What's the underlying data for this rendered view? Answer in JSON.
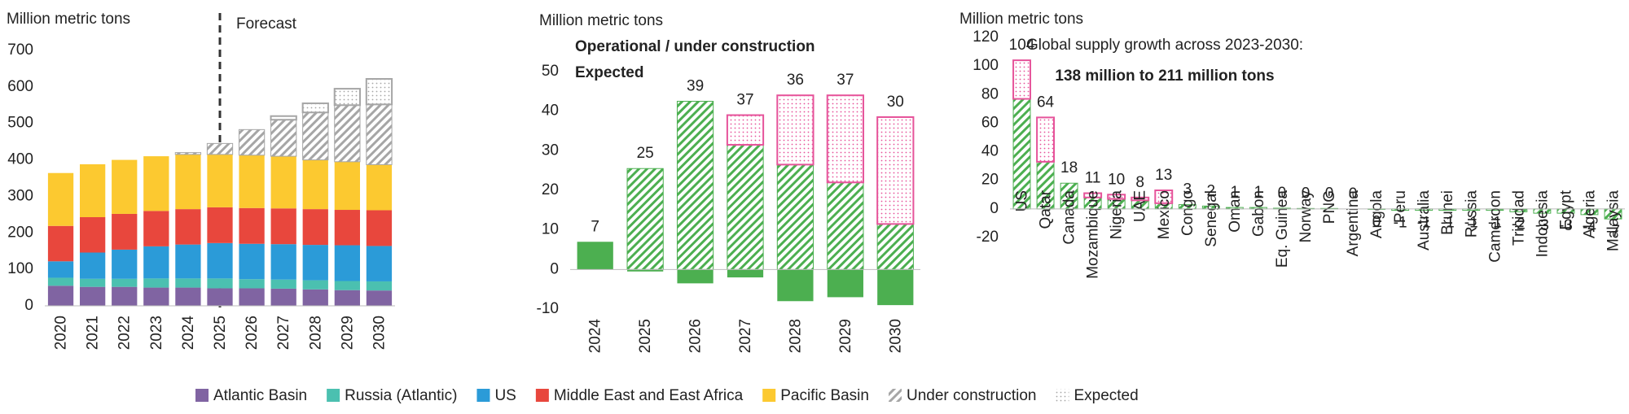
{
  "chart_data": [
    {
      "type": "bar",
      "stacked": true,
      "ylabel": "Million metric tons",
      "annotation": "Forecast",
      "categories": [
        "2020",
        "2021",
        "2022",
        "2023",
        "2024",
        "2025",
        "2026",
        "2027",
        "2028",
        "2029",
        "2030"
      ],
      "series": [
        {
          "name": "Atlantic Basin",
          "color": "#8064a2",
          "values": [
            55,
            52,
            52,
            50,
            50,
            48,
            48,
            47,
            45,
            43,
            42
          ]
        },
        {
          "name": "Russia (Atlantic)",
          "color": "#4bc0b0",
          "values": [
            22,
            22,
            22,
            25,
            25,
            27,
            25,
            25,
            25,
            25,
            25
          ]
        },
        {
          "name": "US",
          "color": "#2b9bd8",
          "values": [
            45,
            72,
            80,
            88,
            93,
            97,
            97,
            97,
            97,
            98,
            97
          ]
        },
        {
          "name": "Middle East and East Africa",
          "color": "#e8473d",
          "values": [
            97,
            97,
            98,
            97,
            97,
            98,
            98,
            98,
            98,
            97,
            98
          ]
        },
        {
          "name": "Pacific Basin",
          "color": "#fcc930",
          "values": [
            145,
            145,
            148,
            150,
            150,
            145,
            145,
            143,
            135,
            132,
            125
          ]
        },
        {
          "name": "Under construction",
          "color": "#a6a6a6",
          "pattern": "hatch",
          "values": [
            0,
            0,
            0,
            0,
            5,
            30,
            70,
            100,
            130,
            155,
            165
          ]
        },
        {
          "name": "Expected",
          "color": "#a6a6a6",
          "pattern": "dots",
          "values": [
            0,
            0,
            0,
            0,
            0,
            0,
            0,
            10,
            25,
            45,
            70
          ]
        }
      ],
      "ylim": [
        0,
        700
      ],
      "yticks": [
        0,
        100,
        200,
        300,
        400,
        500,
        600,
        700
      ],
      "legend": "bottom"
    },
    {
      "type": "bar",
      "stacked": true,
      "ylabel": "Million metric tons",
      "categories": [
        "2024",
        "2025",
        "2026",
        "2027",
        "2028",
        "2029",
        "2030"
      ],
      "series": [
        {
          "color": "#4caf50",
          "values": [
            7,
            -0.5,
            -3.5,
            -2,
            -8,
            -7,
            -9
          ]
        },
        {
          "name": "Operational / under construction",
          "color": "#4caf50",
          "pattern": "hatch",
          "values": [
            0,
            25.5,
            42.5,
            31.5,
            26.5,
            22,
            11.5
          ]
        },
        {
          "name": "Expected",
          "color": "#e6539a",
          "pattern": "dots",
          "values": [
            0,
            0,
            0,
            7.5,
            17.5,
            22,
            27
          ]
        }
      ],
      "totals": [
        7,
        25,
        39,
        37,
        36,
        37,
        30
      ],
      "ylim": [
        -10,
        50
      ],
      "yticks": [
        -10,
        0,
        10,
        20,
        30,
        40,
        50
      ],
      "legend": "top-left"
    },
    {
      "type": "bar",
      "stacked": true,
      "ylabel": "Million metric tons",
      "annotations": [
        "Global supply growth across 2023-2030:",
        "138 million to 211 million tons"
      ],
      "categories": [
        "US",
        "Qatar",
        "Canada",
        "Mozambique",
        "Nigeria",
        "UAE",
        "Mexico",
        "Congo",
        "Senegal",
        "Oman",
        "Gabon",
        "Eq. Guinea",
        "Norway",
        "PNG",
        "Argentina",
        "Angola",
        "Peru",
        "Australia",
        "Brunei",
        "Russia",
        "Cameroon",
        "Trinidad",
        "Indonesia",
        "Egypt",
        "Algeria",
        "Malaysia"
      ],
      "series": [
        {
          "color": "#4caf50",
          "pattern": "hatch",
          "values": [
            77,
            33,
            18,
            8,
            7,
            6,
            4,
            3,
            2,
            1,
            1,
            0.5,
            0.3,
            0.3,
            0,
            -0.3,
            -1,
            -1,
            -1,
            -1,
            -1,
            -2,
            -3,
            -3,
            -4,
            -7
          ]
        },
        {
          "color": "#e6539a",
          "pattern": "dots",
          "values": [
            27,
            31,
            0,
            3,
            3,
            2,
            9,
            0,
            0,
            0,
            0,
            0,
            0,
            0,
            0,
            0,
            0,
            0,
            0,
            0,
            0,
            0,
            0,
            0,
            0,
            0
          ]
        }
      ],
      "totals": [
        104,
        64,
        18,
        11,
        10,
        8,
        13,
        3,
        2,
        1,
        1,
        0,
        0,
        0,
        0,
        0,
        -1,
        -1,
        -1,
        -1,
        -1,
        -2,
        -3,
        -3,
        -4,
        -7
      ],
      "ylim": [
        -20,
        120
      ],
      "yticks": [
        -20,
        0,
        20,
        40,
        60,
        80,
        100,
        120
      ]
    }
  ]
}
